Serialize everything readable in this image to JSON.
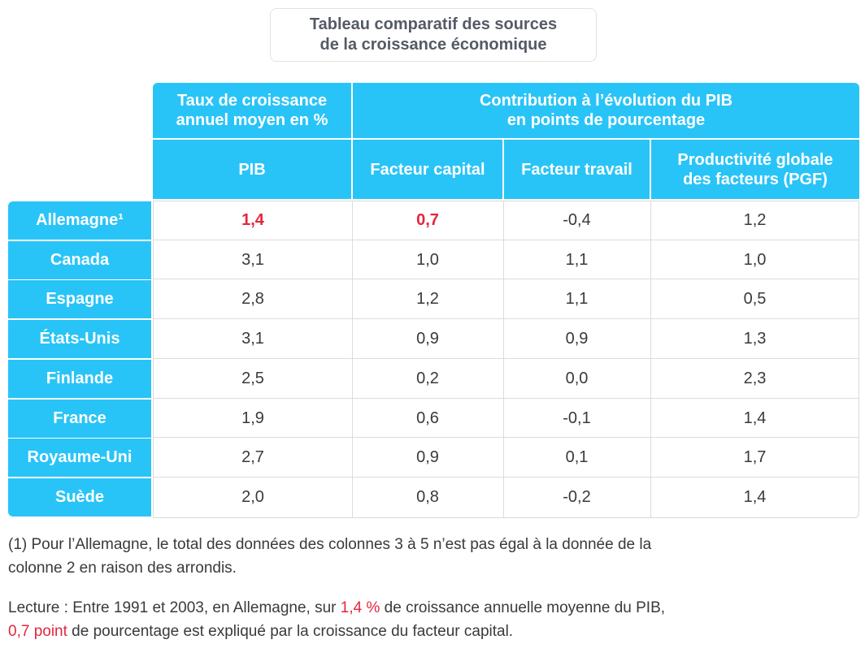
{
  "title": {
    "line1": "Tableau comparatif des sources",
    "line2": "de la croissance économique"
  },
  "headers": {
    "group1_line1": "Taux de croissance",
    "group1_line2": "annuel moyen en %",
    "group2_line1": "Contribution à l’évolution du PIB",
    "group2_line2": "en points de pourcentage",
    "pib": "PIB",
    "capital": "Facteur capital",
    "travail": "Facteur travail",
    "pgf_line1": "Productivité globale",
    "pgf_line2": "des facteurs (PGF)"
  },
  "rows": [
    {
      "country": "Allemagne¹",
      "pib": "1,4",
      "capital": "0,7",
      "travail": "-0,4",
      "pgf": "1,2"
    },
    {
      "country": "Canada",
      "pib": "3,1",
      "capital": "1,0",
      "travail": "1,1",
      "pgf": "1,0"
    },
    {
      "country": "Espagne",
      "pib": "2,8",
      "capital": "1,2",
      "travail": "1,1",
      "pgf": "0,5"
    },
    {
      "country": "États-Unis",
      "pib": "3,1",
      "capital": "0,9",
      "travail": "0,9",
      "pgf": "1,3"
    },
    {
      "country": "Finlande",
      "pib": "2,5",
      "capital": "0,2",
      "travail": "0,0",
      "pgf": "2,3"
    },
    {
      "country": "France",
      "pib": "1,9",
      "capital": "0,6",
      "travail": "-0,1",
      "pgf": "1,4"
    },
    {
      "country": "Royaume-Uni",
      "pib": "2,7",
      "capital": "0,9",
      "travail": "0,1",
      "pgf": "1,7"
    },
    {
      "country": "Suède",
      "pib": "2,0",
      "capital": "0,8",
      "travail": "-0,2",
      "pgf": "1,4"
    }
  ],
  "footnote": {
    "line1": "(1) Pour l’Allemagne, le total des données des colonnes 3 à 5 n’est pas égal à la donnée de la",
    "line2": "colonne 2 en raison des arrondis."
  },
  "lecture": {
    "part1": "Lecture : Entre 1991 et 2003, en Allemagne, sur ",
    "highlight1": "1,4 %",
    "part2": " de croissance annuelle moyenne du PIB,",
    "highlight2": "0,7 point",
    "part3": " de pourcentage est expliqué par la croissance du facteur capital."
  },
  "colors": {
    "header": "#29c4f7",
    "highlight": "#e3273e",
    "text": "#3a3a3a"
  }
}
